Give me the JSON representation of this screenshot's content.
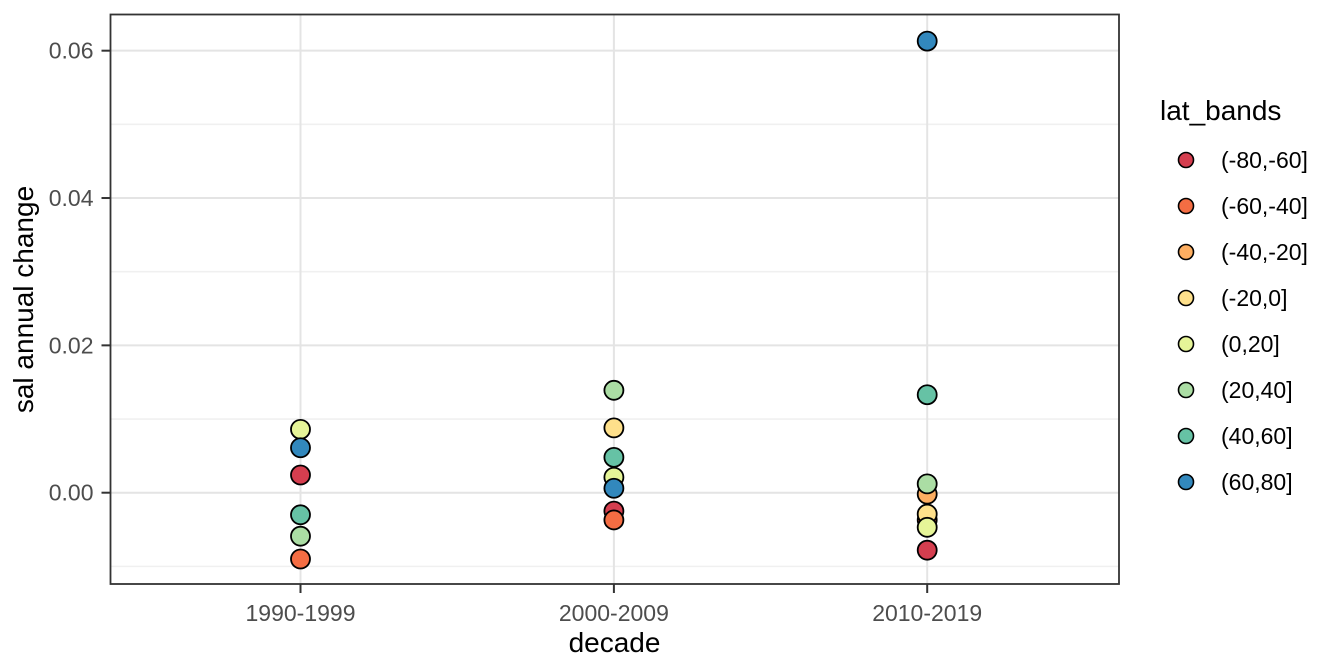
{
  "figure": {
    "background": "#ffffff",
    "panel_fill": "#ffffff",
    "panel_border_color": "#333333",
    "grid_major_color": "#e4e4e4",
    "grid_minor_color": "#f0f0f0",
    "tick_mark_color": "#333333",
    "tick_label_color": "#4d4d4d",
    "point_outline_color": "#000000"
  },
  "chart_data": {
    "type": "scatter",
    "title": "",
    "xlabel": "decade",
    "ylabel": "sal annual change",
    "categories": [
      "1990-1999",
      "2000-2009",
      "2010-2019"
    ],
    "y_ticks": [
      {
        "value": 0.0,
        "label": "0.00"
      },
      {
        "value": 0.02,
        "label": "0.02"
      },
      {
        "value": 0.04,
        "label": "0.04"
      },
      {
        "value": 0.06,
        "label": "0.06"
      }
    ],
    "y_minor_ticks": [
      -0.01,
      0.01,
      0.03,
      0.05
    ],
    "ylim": [
      -0.0124,
      0.0648
    ],
    "grid": true,
    "legend_position": "right",
    "legend_title": "lat_bands",
    "series": [
      {
        "name": "(-80,-60]",
        "color": "#d53e4f",
        "points": [
          {
            "decade": "1990-1999",
            "value": 0.0024
          },
          {
            "decade": "2000-2009",
            "value": -0.0025
          },
          {
            "decade": "2010-2019",
            "value": -0.0078
          }
        ]
      },
      {
        "name": "(-60,-40]",
        "color": "#f46d43",
        "points": [
          {
            "decade": "1990-1999",
            "value": -0.009
          },
          {
            "decade": "2000-2009",
            "value": -0.0037
          },
          {
            "decade": "2010-2019",
            "value": -0.0037
          }
        ]
      },
      {
        "name": "(-40,-20]",
        "color": "#fdae61",
        "points": [
          {
            "decade": "2010-2019",
            "value": -0.0002
          }
        ]
      },
      {
        "name": "(-20,0]",
        "color": "#fee08b",
        "points": [
          {
            "decade": "2000-2009",
            "value": 0.0088
          },
          {
            "decade": "2010-2019",
            "value": -0.0029
          }
        ]
      },
      {
        "name": "(0,20]",
        "color": "#e6f598",
        "points": [
          {
            "decade": "1990-1999",
            "value": 0.0086
          },
          {
            "decade": "2000-2009",
            "value": 0.0021
          },
          {
            "decade": "2010-2019",
            "value": -0.0047
          }
        ]
      },
      {
        "name": "(20,40]",
        "color": "#abdda4",
        "points": [
          {
            "decade": "1990-1999",
            "value": -0.0059
          },
          {
            "decade": "2000-2009",
            "value": 0.0139
          },
          {
            "decade": "2010-2019",
            "value": 0.0012
          }
        ]
      },
      {
        "name": "(40,60]",
        "color": "#66c2a5",
        "points": [
          {
            "decade": "1990-1999",
            "value": -0.003
          },
          {
            "decade": "2000-2009",
            "value": 0.0048
          },
          {
            "decade": "2010-2019",
            "value": 0.0133
          }
        ]
      },
      {
        "name": "(60,80]",
        "color": "#3288bd",
        "points": [
          {
            "decade": "1990-1999",
            "value": 0.0061
          },
          {
            "decade": "2000-2009",
            "value": 0.0006
          },
          {
            "decade": "2010-2019",
            "value": 0.0613
          }
        ]
      }
    ]
  }
}
